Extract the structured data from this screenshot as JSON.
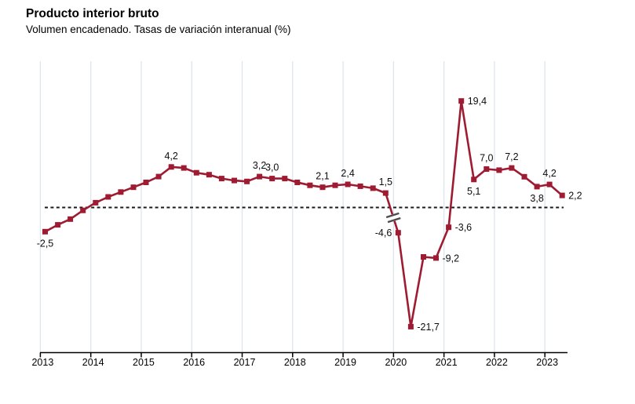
{
  "header": {
    "title": "Producto interior bruto",
    "subtitle": "Volumen encadenado. Tasas de variación interanual (%)"
  },
  "colors": {
    "line": "#9e1b32",
    "marker": "#9e1b32",
    "grid": "#dde6ed",
    "axis": "#000000",
    "zero_line": "#1a1a1a",
    "break_mark": "#4d4d4d",
    "label_text": "#0d0d0d"
  },
  "chart_data": {
    "type": "line",
    "title": "Producto interior bruto",
    "subtitle": "Volumen encadenado. Tasas de variación interanual (%)",
    "unit": "%",
    "frequency": "quarterly",
    "grid": "vertical-years-only",
    "legend": "none",
    "y_axis": "hidden (no scale shown; dashed line marks 0; scale compressed after 2019T4, shown by break mark)",
    "x_tick_labels": [
      "2013",
      "2014",
      "2015",
      "2016",
      "2017",
      "2018",
      "2019",
      "2020",
      "2021",
      "2022",
      "2023"
    ],
    "quarters": [
      "2013T1",
      "2013T2",
      "2013T3",
      "2013T4",
      "2014T1",
      "2014T2",
      "2014T3",
      "2014T4",
      "2015T1",
      "2015T2",
      "2015T3",
      "2015T4",
      "2016T1",
      "2016T2",
      "2016T3",
      "2016T4",
      "2017T1",
      "2017T2",
      "2017T3",
      "2017T4",
      "2018T1",
      "2018T2",
      "2018T3",
      "2018T4",
      "2019T1",
      "2019T2",
      "2019T3",
      "2019T4",
      "2020T1",
      "2020T2",
      "2020T3",
      "2020T4",
      "2021T1",
      "2021T2",
      "2021T3",
      "2021T4",
      "2022T1",
      "2022T2",
      "2022T3",
      "2022T4",
      "2023T1",
      "2023T2"
    ],
    "series": [
      {
        "name": "PIB. Tasa de variación interanual (%)",
        "values": [
          -2.5,
          -1.8,
          -1.2,
          -0.3,
          0.5,
          1.1,
          1.6,
          2.1,
          2.6,
          3.2,
          4.2,
          4.1,
          3.6,
          3.4,
          3.0,
          2.8,
          2.7,
          3.2,
          3.0,
          3.0,
          2.6,
          2.3,
          2.1,
          2.3,
          2.4,
          2.2,
          2.0,
          1.5,
          -4.6,
          -21.7,
          -9.0,
          -9.2,
          -3.6,
          19.4,
          5.1,
          7.0,
          6.8,
          7.2,
          5.6,
          3.8,
          4.2,
          2.2
        ]
      }
    ],
    "data_labels": [
      {
        "quarter": "2013T1",
        "text": "-2,5",
        "placement": "below"
      },
      {
        "quarter": "2015T3",
        "text": "4,2",
        "placement": "above"
      },
      {
        "quarter": "2017T2",
        "text": "3,2",
        "placement": "above"
      },
      {
        "quarter": "2017T3",
        "text": "3,0",
        "placement": "above"
      },
      {
        "quarter": "2018T3",
        "text": "2,1",
        "placement": "above"
      },
      {
        "quarter": "2019T1",
        "text": "2,4",
        "placement": "above"
      },
      {
        "quarter": "2019T4",
        "text": "1,5",
        "placement": "above"
      },
      {
        "quarter": "2020T1",
        "text": "-4,6",
        "placement": "left"
      },
      {
        "quarter": "2020T2",
        "text": "-21,7",
        "placement": "right"
      },
      {
        "quarter": "2020T4",
        "text": "-9,2",
        "placement": "right"
      },
      {
        "quarter": "2021T1",
        "text": "-3,6",
        "placement": "right"
      },
      {
        "quarter": "2021T2",
        "text": "19,4",
        "placement": "right"
      },
      {
        "quarter": "2021T3",
        "text": "5,1",
        "placement": "below"
      },
      {
        "quarter": "2021T4",
        "text": "7,0",
        "placement": "above"
      },
      {
        "quarter": "2022T2",
        "text": "7,2",
        "placement": "above"
      },
      {
        "quarter": "2022T4",
        "text": "3,8",
        "placement": "below"
      },
      {
        "quarter": "2023T1",
        "text": "4,2",
        "placement": "above"
      },
      {
        "quarter": "2023T2",
        "text": "2,2",
        "placement": "right"
      }
    ],
    "zero_line": {
      "value": 0,
      "style": "dashed"
    },
    "scale_break": {
      "after_quarter": "2019T4"
    }
  }
}
